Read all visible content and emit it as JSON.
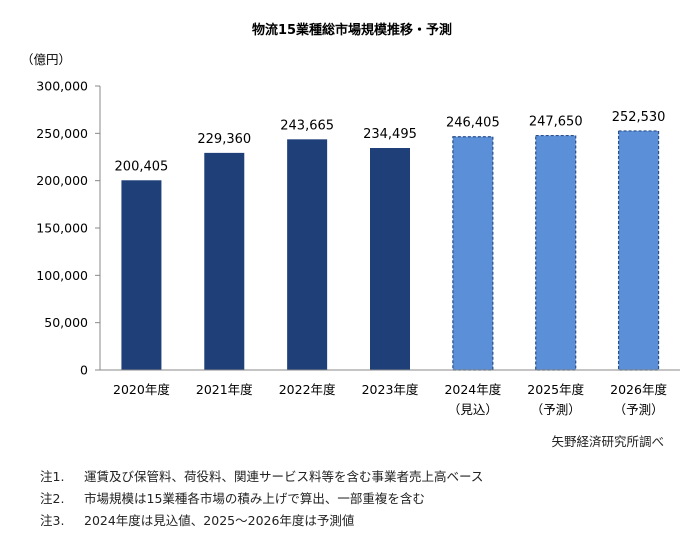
{
  "chart_data": {
    "type": "bar",
    "title": "物流15業種総市場規模推移・予測",
    "ylabel": "（億円）",
    "ylim": [
      0,
      300000
    ],
    "yticks": [
      "0",
      "50,000",
      "100,000",
      "150,000",
      "200,000",
      "250,000",
      "300,000"
    ],
    "categories": [
      {
        "line1": "2020年度",
        "line2": ""
      },
      {
        "line1": "2021年度",
        "line2": ""
      },
      {
        "line1": "2022年度",
        "line2": ""
      },
      {
        "line1": "2023年度",
        "line2": ""
      },
      {
        "line1": "2024年度",
        "line2": "（見込）"
      },
      {
        "line1": "2025年度",
        "line2": "（予測）"
      },
      {
        "line1": "2026年度",
        "line2": "（予測）"
      }
    ],
    "values": [
      200405,
      229360,
      243665,
      234495,
      246405,
      247650,
      252530
    ],
    "value_labels": [
      "200,405",
      "229,360",
      "243,665",
      "234,495",
      "246,405",
      "247,650",
      "252,530"
    ],
    "bar_styles": [
      "actual",
      "actual",
      "actual",
      "actual",
      "forecast",
      "forecast",
      "forecast"
    ],
    "colors": {
      "actual": "#1f3f78",
      "forecast": "#5b8fd8",
      "forecast_border": "#2a4f8a"
    },
    "grid": false
  },
  "source": "矢野経済研究所調べ",
  "notes": [
    {
      "id": "注1.",
      "text": "運賃及び保管料、荷役料、関連サービス料等を含む事業者売上高ベース"
    },
    {
      "id": "注2.",
      "text": "市場規模は15業種各市場の積み上げで算出、一部重複を含む"
    },
    {
      "id": "注3.",
      "text": "2024年度は見込値、2025～2026年度は予測値"
    }
  ]
}
